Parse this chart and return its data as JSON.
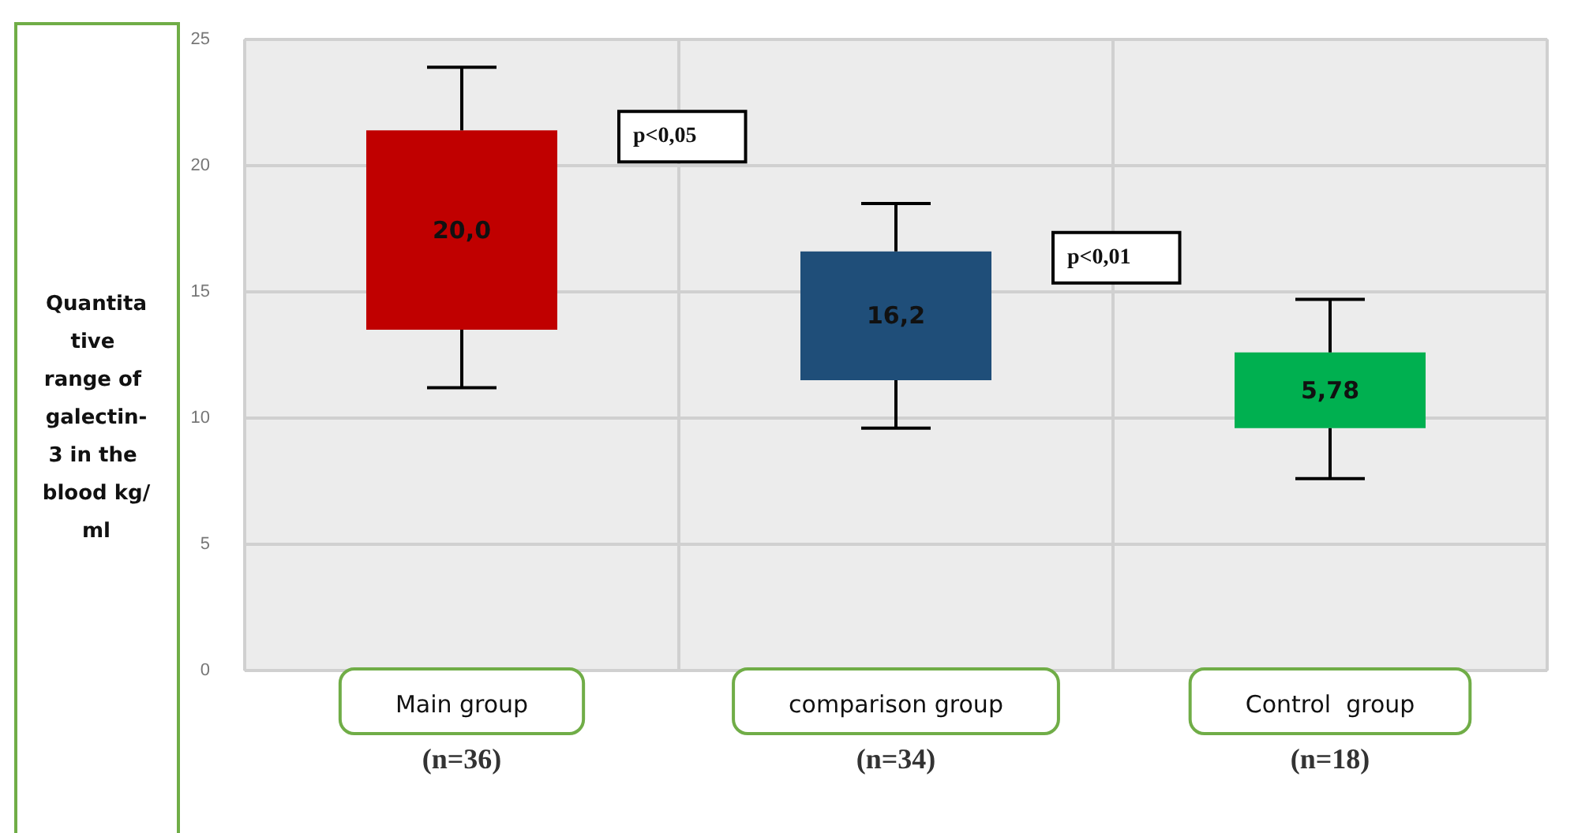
{
  "chart_data": {
    "type": "bar",
    "ylabel": "Quantitative range of galectin-3 in the blood kg/ml",
    "categories": [
      "Main group\n(n=36)",
      "comparison group\n(n=34)",
      "Control  group\n(n=18)"
    ],
    "base": [
      13.5,
      11.5,
      9.6
    ],
    "values": [
      7.9,
      5.1,
      3.0
    ],
    "errors": [
      [
        11.2,
        23.9
      ],
      [
        9.6,
        18.5
      ],
      [
        7.6,
        14.7
      ]
    ],
    "colors": [
      "#c00000",
      "#1f4e79",
      "#00b050"
    ],
    "ylim": [
      0,
      25
    ],
    "yticks": [
      0,
      5,
      10,
      15,
      20,
      25
    ],
    "grid": true,
    "annotations": [
      "20,0",
      "16,2",
      "5,78",
      "p<0,05",
      "p<0,01"
    ]
  }
}
